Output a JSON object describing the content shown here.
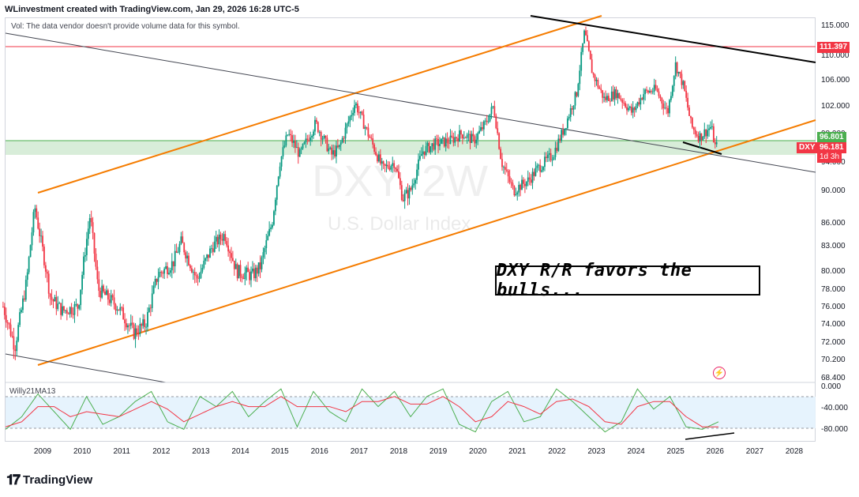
{
  "header": {
    "credit": "WLinvestment created with TradingView.com, Jan 29, 2026 16:28 UTC-5",
    "vol_note": "Vol: The data vendor doesn't provide volume data for this symbol."
  },
  "watermark": {
    "symbol": "DXY, 2W",
    "name": "U.S. Dollar Index"
  },
  "annotation": "DXY R/R favors the bulls...",
  "indicator_label": "Willy21MA13",
  "price_tags": {
    "resistance": {
      "label": "111.397",
      "color": "#f23645"
    },
    "support": {
      "label": "96.801",
      "color": "#4caf50"
    },
    "symbol": "DXY",
    "last": {
      "label": "96.181",
      "color": "#f23645"
    },
    "countdown": "1d 3h"
  },
  "flash_icon": "lightning-icon",
  "logo_text": "TradingView",
  "colors": {
    "up": "#089981",
    "down": "#f23645",
    "channel": "#f57c00",
    "zone": "#c8e6c9",
    "indicator_line": "#4caf50",
    "indicator_ma": "#f23645",
    "indicator_zone": "#e3f2fd"
  },
  "chart_data": [
    {
      "type": "candlestick",
      "title": "DXY, 2W",
      "subtitle": "U.S. Dollar Index",
      "y_ticks": [
        "115.000",
        "110.000",
        "106.000",
        "102.000",
        "98.000",
        "94.000",
        "90.000",
        "86.000",
        "83.000",
        "80.000",
        "78.000",
        "76.000",
        "74.000",
        "72.000",
        "70.200",
        "68.400"
      ],
      "x_ticks": [
        "2009",
        "2010",
        "2011",
        "2012",
        "2013",
        "2014",
        "2015",
        "2016",
        "2017",
        "2018",
        "2019",
        "2020",
        "2021",
        "2022",
        "2023",
        "2024",
        "2025",
        "2026",
        "2027",
        "2028"
      ],
      "ylim": [
        68.4,
        115.5
      ],
      "horizontal_levels": [
        111.397,
        96.801
      ],
      "series": [
        {
          "x": [
            2008.0,
            2008.3,
            2008.6,
            2008.8,
            2009.2,
            2009.5,
            2009.9,
            2010.2,
            2010.4,
            2010.9,
            2011.3,
            2011.6,
            2011.9,
            2012.3,
            2012.5,
            2012.9,
            2013.3,
            2013.6,
            2013.9,
            2014.3,
            2014.5,
            2014.8,
            2015.0,
            2015.2,
            2015.5,
            2015.9,
            2016.3,
            2016.5,
            2016.9,
            2017.0,
            2017.3,
            2017.6,
            2017.9,
            2018.1,
            2018.3,
            2018.6,
            2018.9,
            2019.3,
            2019.6,
            2019.9,
            2020.2,
            2020.4,
            2020.6,
            2020.9,
            2021.3,
            2021.5,
            2021.9,
            2022.2,
            2022.5,
            2022.7,
            2022.9,
            2023.2,
            2023.5,
            2023.9,
            2024.2,
            2024.5,
            2024.8,
            2025.0,
            2025.2,
            2025.4,
            2025.6,
            2025.9,
            2026.0
          ],
          "y": [
            76,
            71.5,
            79,
            88,
            77,
            75.5,
            76,
            87,
            78,
            76,
            73,
            74,
            79.5,
            81,
            83.5,
            79,
            83,
            84.5,
            80,
            79.5,
            80.5,
            86,
            94,
            98,
            95,
            99.5,
            95,
            96,
            102.5,
            101,
            97,
            93,
            94,
            89,
            90,
            95.5,
            96.5,
            97,
            98,
            97,
            99.5,
            102,
            94,
            90,
            91.5,
            93,
            95,
            99,
            104,
            114,
            107,
            103,
            104,
            101,
            104,
            104.5,
            101,
            108.5,
            105,
            99,
            97.5,
            99,
            96.18
          ]
        }
      ]
    },
    {
      "type": "line",
      "title": "Willy21MA13",
      "y_ticks": [
        "0.000",
        "-40.000",
        "-80.000"
      ],
      "ylim": [
        -100,
        0
      ],
      "series": [
        {
          "name": "Willy21",
          "values": [
            -85,
            -60,
            -15,
            -50,
            -85,
            -20,
            -75,
            -60,
            -30,
            -10,
            -70,
            -85,
            -20,
            -40,
            -10,
            -60,
            -30,
            -5,
            -80,
            -10,
            -50,
            -70,
            -5,
            -40,
            -10,
            -60,
            -20,
            -5,
            -75,
            -90,
            -30,
            -10,
            -70,
            -60,
            -5,
            -30,
            -60,
            -90,
            -70,
            -5,
            -45,
            -20,
            -80,
            -85,
            -70
          ]
        },
        {
          "name": "MA13",
          "values": [
            -80,
            -70,
            -40,
            -40,
            -60,
            -50,
            -55,
            -60,
            -45,
            -30,
            -45,
            -70,
            -55,
            -40,
            -30,
            -40,
            -40,
            -20,
            -40,
            -40,
            -40,
            -50,
            -30,
            -30,
            -20,
            -35,
            -35,
            -20,
            -40,
            -70,
            -60,
            -30,
            -40,
            -55,
            -30,
            -25,
            -40,
            -70,
            -75,
            -40,
            -30,
            -30,
            -60,
            -80,
            -80
          ]
        }
      ]
    }
  ]
}
